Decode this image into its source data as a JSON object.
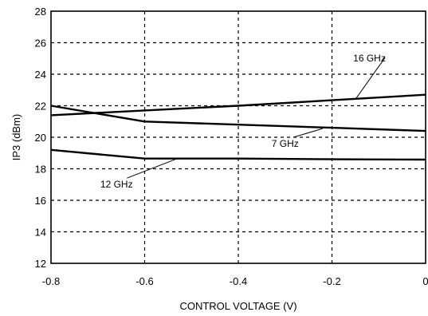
{
  "chart_data": {
    "type": "line",
    "title": "",
    "xlabel": "CONTROL VOLTAGE (V)",
    "ylabel": "IP3 (dBm)",
    "xlim": [
      -0.8,
      0
    ],
    "ylim": [
      12,
      28
    ],
    "xticks": [
      -0.8,
      -0.6,
      -0.4,
      -0.2,
      0
    ],
    "xtick_labels": [
      "-0.8",
      "-0.6",
      "-0.4",
      "-0.2",
      "0"
    ],
    "yticks": [
      12,
      14,
      16,
      18,
      20,
      22,
      24,
      26,
      28
    ],
    "ytick_labels": [
      "12",
      "14",
      "16",
      "18",
      "20",
      "22",
      "24",
      "26",
      "28"
    ],
    "grid": true,
    "legend": "none",
    "series": [
      {
        "name": "16 GHz",
        "x": [
          -0.8,
          -0.6,
          -0.4,
          -0.2,
          0
        ],
        "y": [
          21.4,
          21.7,
          22.0,
          22.35,
          22.7
        ],
        "label_at": [
          -0.12,
          24.8
        ],
        "label_anchor_point": [
          -0.15,
          22.4
        ]
      },
      {
        "name": "7 GHz",
        "x": [
          -0.8,
          -0.6,
          -0.4,
          -0.2,
          0
        ],
        "y": [
          22.0,
          21.0,
          20.8,
          20.6,
          20.4
        ],
        "label_at": [
          -0.3,
          19.4
        ],
        "label_anchor_point": [
          -0.22,
          20.55
        ]
      },
      {
        "name": "12 GHz",
        "x": [
          -0.8,
          -0.6,
          -0.4,
          -0.2,
          0
        ],
        "y": [
          19.2,
          18.65,
          18.65,
          18.6,
          18.58
        ],
        "label_at": [
          -0.66,
          16.8
        ],
        "label_anchor_point": [
          -0.53,
          18.65
        ]
      }
    ]
  }
}
